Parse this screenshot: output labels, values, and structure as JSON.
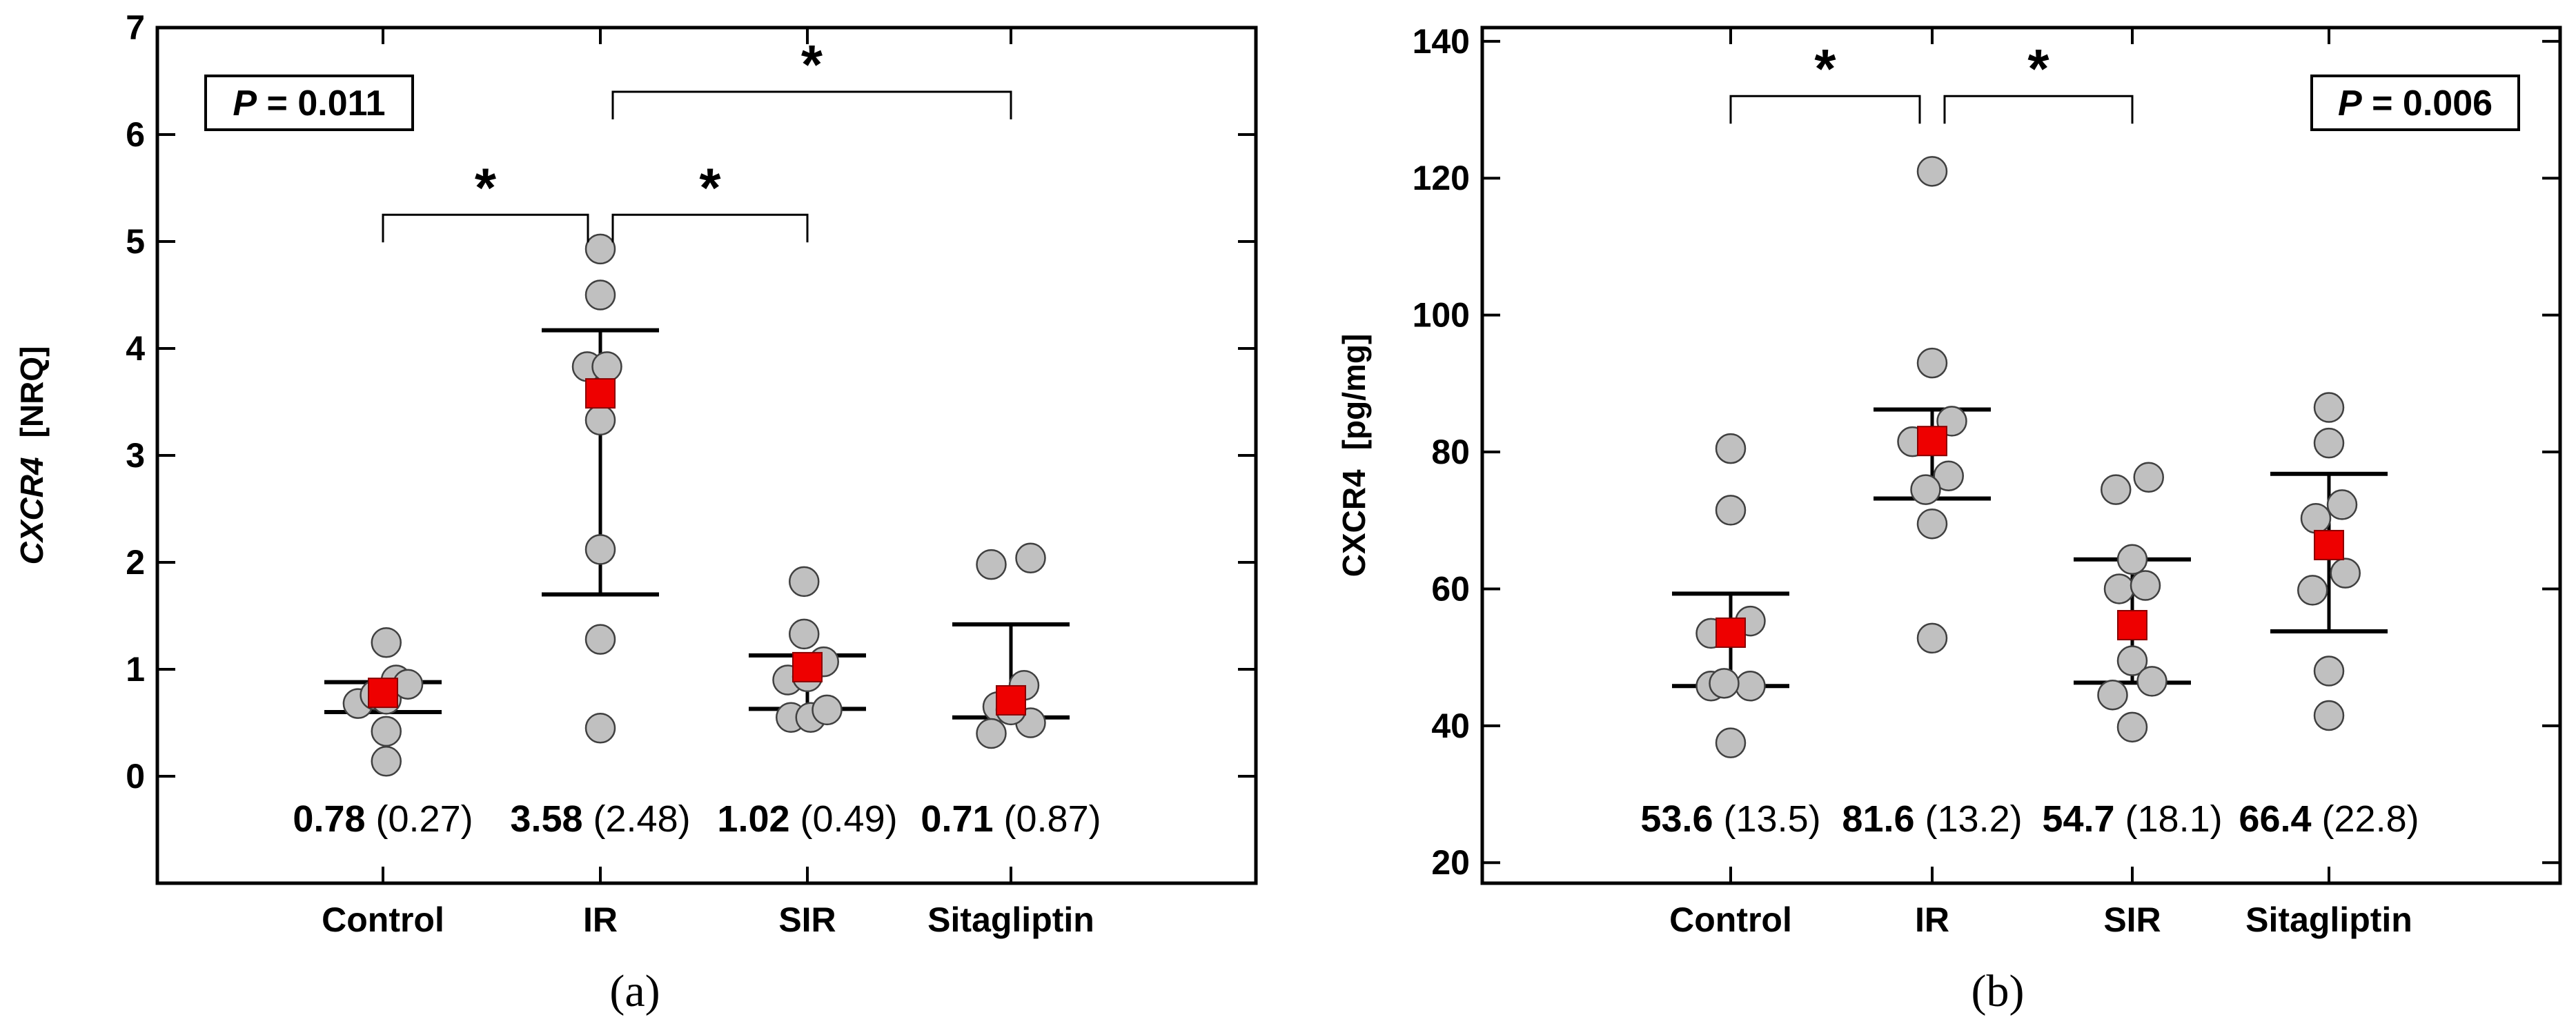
{
  "chart_data": [
    {
      "type": "scatter",
      "panel_label": "(a)",
      "ylabel_italic": "CXCR4",
      "ylabel_unit": "[NRQ]",
      "ylim": [
        -1,
        7
      ],
      "yticks": [
        "0",
        "1",
        "2",
        "3",
        "4",
        "5",
        "6",
        "7"
      ],
      "categories": [
        "Control",
        "IR",
        "SIR",
        "Sitagliptin"
      ],
      "p_prefix": "P",
      "p_value": " = 0.011",
      "pbox_corner": "top-left",
      "significance": [
        {
          "from": 0,
          "to": 1,
          "bracket": 5.25,
          "label": "*"
        },
        {
          "from": 1,
          "to": 2,
          "bracket": 5.25,
          "label": "*"
        },
        {
          "from": 1,
          "to": 3,
          "bracket": 6.4,
          "label": "*"
        }
      ],
      "groups": [
        {
          "name": "Control",
          "mean": 0.78,
          "err_low": 0.6,
          "err_high": 0.88,
          "stat_bold": "0.78",
          "stat_paren": "(0.27)",
          "points": [
            [
              -0.38,
              0.68
            ],
            [
              -0.12,
              0.76
            ],
            [
              0.05,
              0.72
            ],
            [
              0.2,
              0.9
            ],
            [
              0.38,
              0.86
            ],
            [
              0.05,
              1.25
            ],
            [
              0.05,
              0.42
            ],
            [
              0.05,
              0.14
            ]
          ]
        },
        {
          "name": "IR",
          "mean": 3.58,
          "err_low": 1.7,
          "err_high": 4.17,
          "stat_bold": "3.58",
          "stat_paren": "(2.48)",
          "points": [
            [
              0.0,
              4.93
            ],
            [
              0.0,
              4.5
            ],
            [
              -0.2,
              3.83
            ],
            [
              0.1,
              3.83
            ],
            [
              0.0,
              3.33
            ],
            [
              0.0,
              2.12
            ],
            [
              0.0,
              1.28
            ],
            [
              0.0,
              0.45
            ]
          ]
        },
        {
          "name": "SIR",
          "mean": 1.02,
          "err_low": 0.63,
          "err_high": 1.13,
          "stat_bold": "1.02",
          "stat_paren": "(0.49)",
          "points": [
            [
              -0.05,
              1.82
            ],
            [
              -0.05,
              1.33
            ],
            [
              -0.3,
              0.9
            ],
            [
              0.25,
              1.07
            ],
            [
              -0.25,
              0.55
            ],
            [
              0.05,
              0.55
            ],
            [
              0.3,
              0.62
            ],
            [
              0.0,
              0.93
            ]
          ]
        },
        {
          "name": "Sitagliptin",
          "mean": 0.71,
          "err_low": 0.55,
          "err_high": 1.42,
          "stat_bold": "0.71",
          "stat_paren": "(0.87)",
          "points": [
            [
              -0.3,
              1.98
            ],
            [
              0.3,
              2.04
            ],
            [
              0.2,
              0.85
            ],
            [
              -0.2,
              0.65
            ],
            [
              -0.3,
              0.4
            ],
            [
              0.3,
              0.5
            ],
            [
              0.0,
              0.62
            ]
          ]
        }
      ]
    },
    {
      "type": "scatter",
      "panel_label": "(b)",
      "ylabel": "CXCR4",
      "ylabel_unit": "[pg/mg]",
      "ylim": [
        17,
        142
      ],
      "yticks": [
        "20",
        "40",
        "60",
        "80",
        "100",
        "120",
        "140"
      ],
      "categories": [
        "Control",
        "IR",
        "SIR",
        "Sitagliptin"
      ],
      "p_prefix": "P",
      "p_value": " = 0.006",
      "pbox_corner": "top-right",
      "significance": [
        {
          "from": 0,
          "to": 1,
          "bracket": 132,
          "label": "*"
        },
        {
          "from": 1,
          "to": 2,
          "bracket": 132,
          "label": "*"
        }
      ],
      "groups": [
        {
          "name": "Control",
          "mean": 53.6,
          "err_low": 45.8,
          "err_high": 59.3,
          "stat_bold": "53.6",
          "stat_paren": "(13.5)",
          "points": [
            [
              0.0,
              80.5
            ],
            [
              0.0,
              71.5
            ],
            [
              -0.3,
              53.5
            ],
            [
              0.3,
              55.3
            ],
            [
              -0.3,
              45.8
            ],
            [
              0.3,
              45.8
            ],
            [
              -0.1,
              46.2
            ],
            [
              0.0,
              37.5
            ]
          ]
        },
        {
          "name": "IR",
          "mean": 81.6,
          "err_low": 73.2,
          "err_high": 86.2,
          "stat_bold": "81.6",
          "stat_paren": "(13.2)",
          "points": [
            [
              0.0,
              121.0
            ],
            [
              0.0,
              93.0
            ],
            [
              0.3,
              84.5
            ],
            [
              -0.3,
              81.5
            ],
            [
              0.25,
              76.5
            ],
            [
              -0.1,
              74.5
            ],
            [
              0.0,
              69.5
            ],
            [
              0.0,
              52.8
            ]
          ]
        },
        {
          "name": "SIR",
          "mean": 54.7,
          "err_low": 46.3,
          "err_high": 64.3,
          "stat_bold": "54.7",
          "stat_paren": "(18.1)",
          "points": [
            [
              -0.25,
              74.5
            ],
            [
              0.25,
              76.3
            ],
            [
              0.0,
              64.3
            ],
            [
              -0.2,
              60.0
            ],
            [
              0.2,
              60.5
            ],
            [
              0.0,
              49.5
            ],
            [
              -0.3,
              44.5
            ],
            [
              0.3,
              46.5
            ],
            [
              0.0,
              39.8
            ]
          ]
        },
        {
          "name": "Sitagliptin",
          "mean": 66.4,
          "err_low": 53.8,
          "err_high": 76.8,
          "stat_bold": "66.4",
          "stat_paren": "(22.8)",
          "points": [
            [
              0.0,
              86.5
            ],
            [
              0.0,
              81.3
            ],
            [
              -0.2,
              70.3
            ],
            [
              0.2,
              72.3
            ],
            [
              0.25,
              62.3
            ],
            [
              -0.25,
              59.8
            ],
            [
              0.0,
              48.0
            ],
            [
              0.0,
              41.5
            ]
          ]
        }
      ]
    }
  ]
}
